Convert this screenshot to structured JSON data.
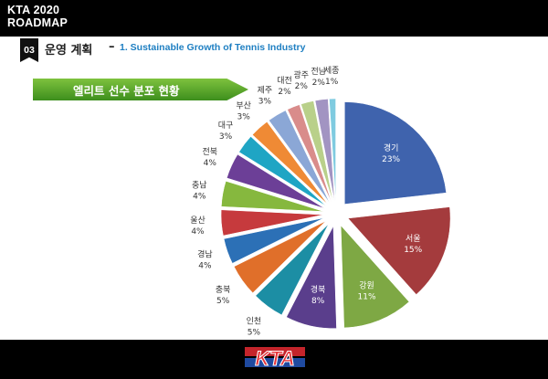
{
  "header": {
    "line1": "KTA 2020",
    "line2": "ROADMAP"
  },
  "section": {
    "number": "03",
    "title": "운영 계획",
    "dash": "–",
    "subtitle": "1. Sustainable Growth of Tennis Industry"
  },
  "banner": {
    "label": "엘리트 선수 분포 현황"
  },
  "logo": {
    "text": "KTA"
  },
  "chart_data": {
    "type": "pie",
    "style": "exploded",
    "slices": [
      {
        "label": "경기",
        "value": 23,
        "display": "23%",
        "color": "#3f63ad"
      },
      {
        "label": "서울",
        "value": 15,
        "display": "15%",
        "color": "#a43b3d"
      },
      {
        "label": "강원",
        "value": 11,
        "display": "11%",
        "color": "#7ea844"
      },
      {
        "label": "경북",
        "value": 8,
        "display": "8%",
        "color": "#5a3e8c"
      },
      {
        "label": "인천",
        "value": 5,
        "display": "5%",
        "color": "#1c8ea4"
      },
      {
        "label": "충북",
        "value": 5,
        "display": "5%",
        "color": "#e06f2a"
      },
      {
        "label": "경남",
        "value": 4,
        "display": "4%",
        "color": "#2c70b6"
      },
      {
        "label": "울산",
        "value": 4,
        "display": "4%",
        "color": "#c63a3d"
      },
      {
        "label": "충남",
        "value": 4,
        "display": "4%",
        "color": "#86b83e"
      },
      {
        "label": "전북",
        "value": 4,
        "display": "4%",
        "color": "#6c3f97"
      },
      {
        "label": "대구",
        "value": 3,
        "display": "3%",
        "color": "#1fa5c4"
      },
      {
        "label": "부산",
        "value": 3,
        "display": "3%",
        "color": "#ef8a35"
      },
      {
        "label": "제주",
        "value": 3,
        "display": "3%",
        "color": "#8ba7d6"
      },
      {
        "label": "대전",
        "value": 2,
        "display": "2%",
        "color": "#d98c8b"
      },
      {
        "label": "광주",
        "value": 2,
        "display": "2%",
        "color": "#b9d08a"
      },
      {
        "label": "전남",
        "value": 2,
        "display": "2%",
        "color": "#a294c2"
      },
      {
        "label": "세종",
        "value": 1,
        "display": "1%",
        "color": "#7fcbe0"
      }
    ]
  }
}
